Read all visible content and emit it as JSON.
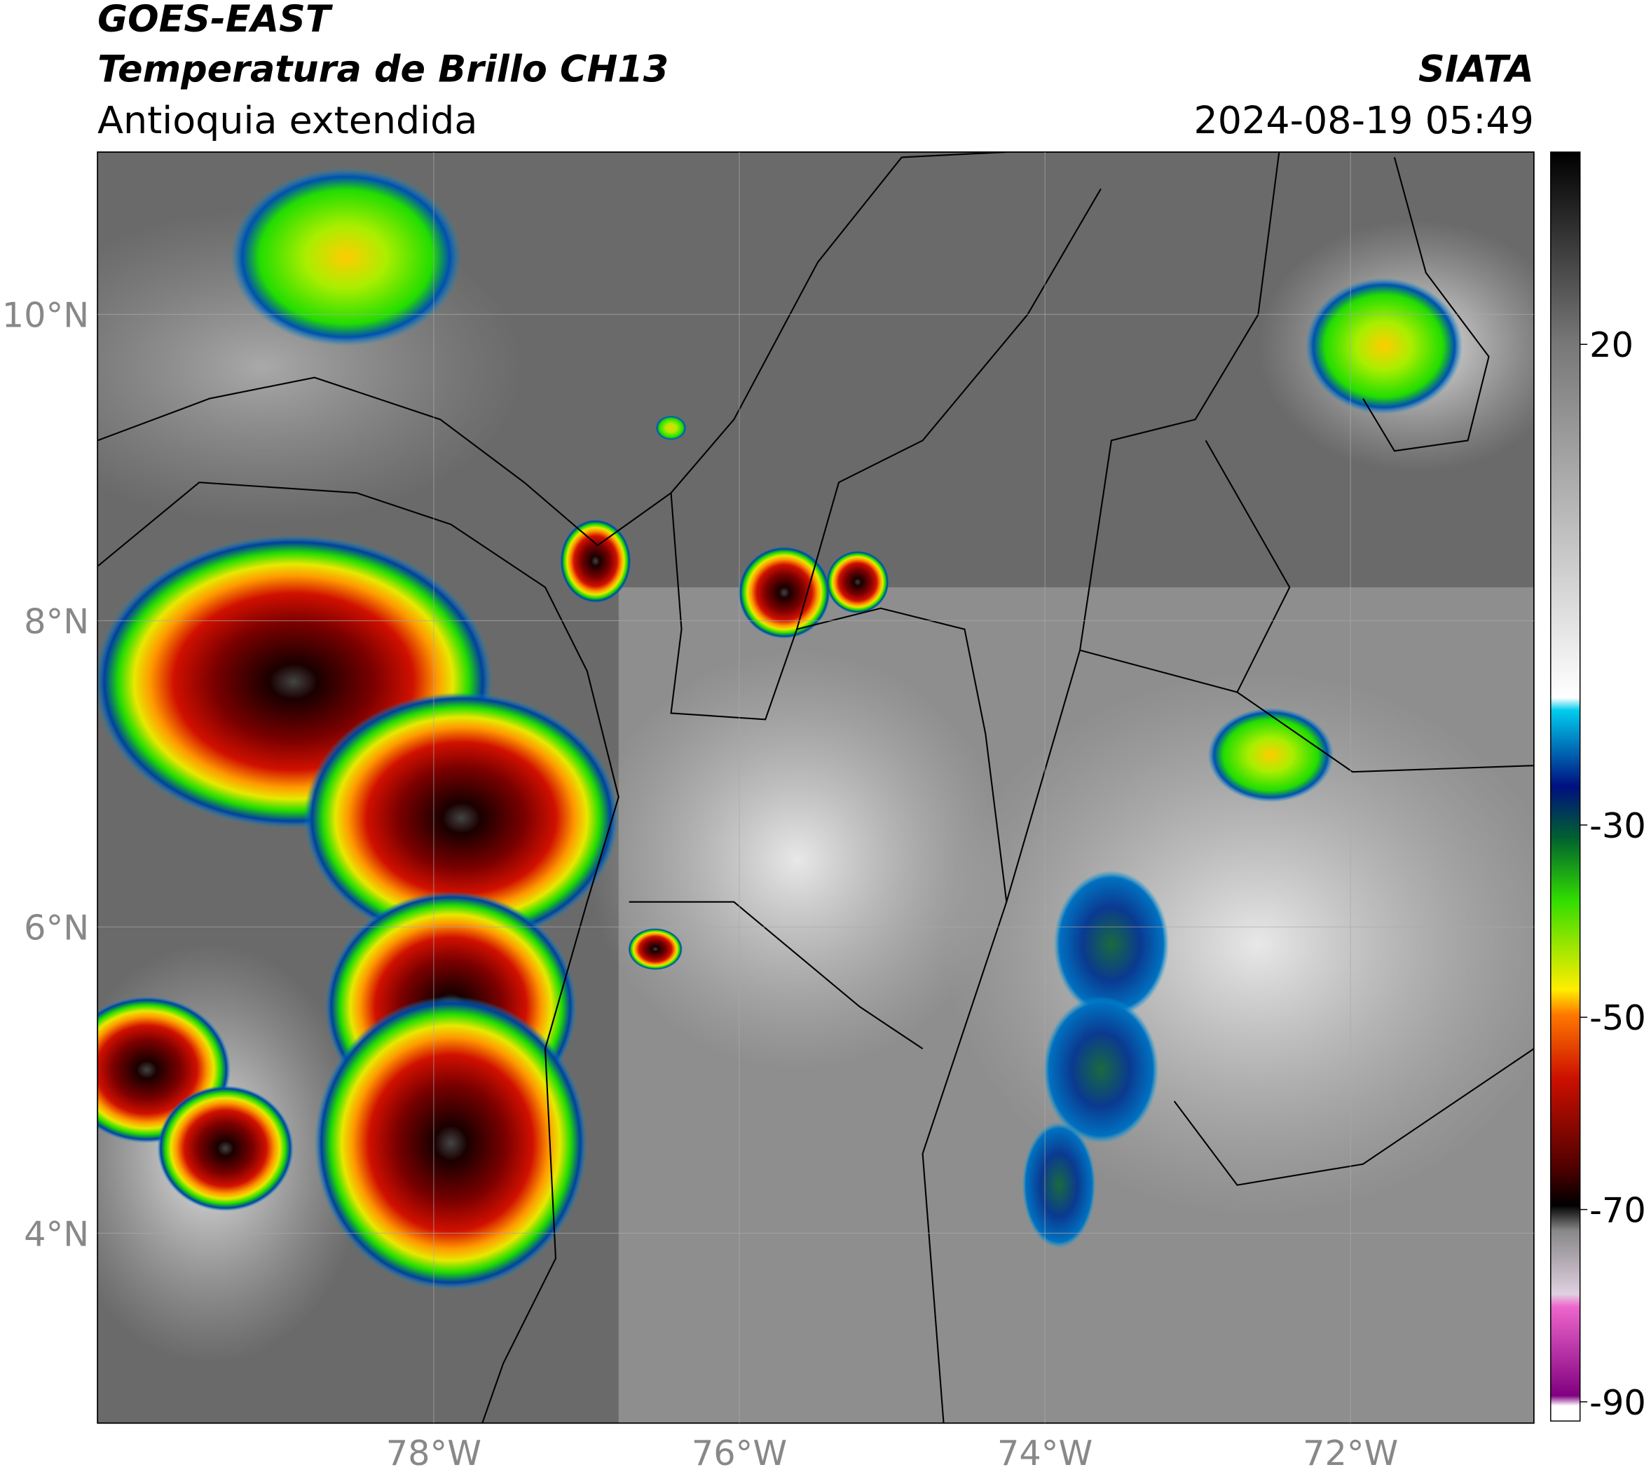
{
  "header": {
    "title": "GOES-EAST",
    "subtitle": "Temperatura de Brillo CH13",
    "region": "Antioquia extendida",
    "organization": "SIATA",
    "datetime": "2024-08-19 05:49"
  },
  "map": {
    "xlim": [
      -80.2,
      -70.8
    ],
    "ylim": [
      2.76,
      11.06
    ],
    "lat_ticks": [
      {
        "value": 10,
        "label": "10°N"
      },
      {
        "value": 8,
        "label": "8°N"
      },
      {
        "value": 6,
        "label": "6°N"
      },
      {
        "value": 4,
        "label": "4°N"
      }
    ],
    "lon_ticks": [
      {
        "value": -78,
        "label": "78°W"
      },
      {
        "value": -76,
        "label": "76°W"
      },
      {
        "value": -74,
        "label": "74°W"
      },
      {
        "value": -72,
        "label": "72°W"
      }
    ]
  },
  "colorbar": {
    "lim": [
      -92,
      40
    ],
    "ticks": [
      20,
      -30,
      -50,
      -70,
      -90
    ]
  }
}
